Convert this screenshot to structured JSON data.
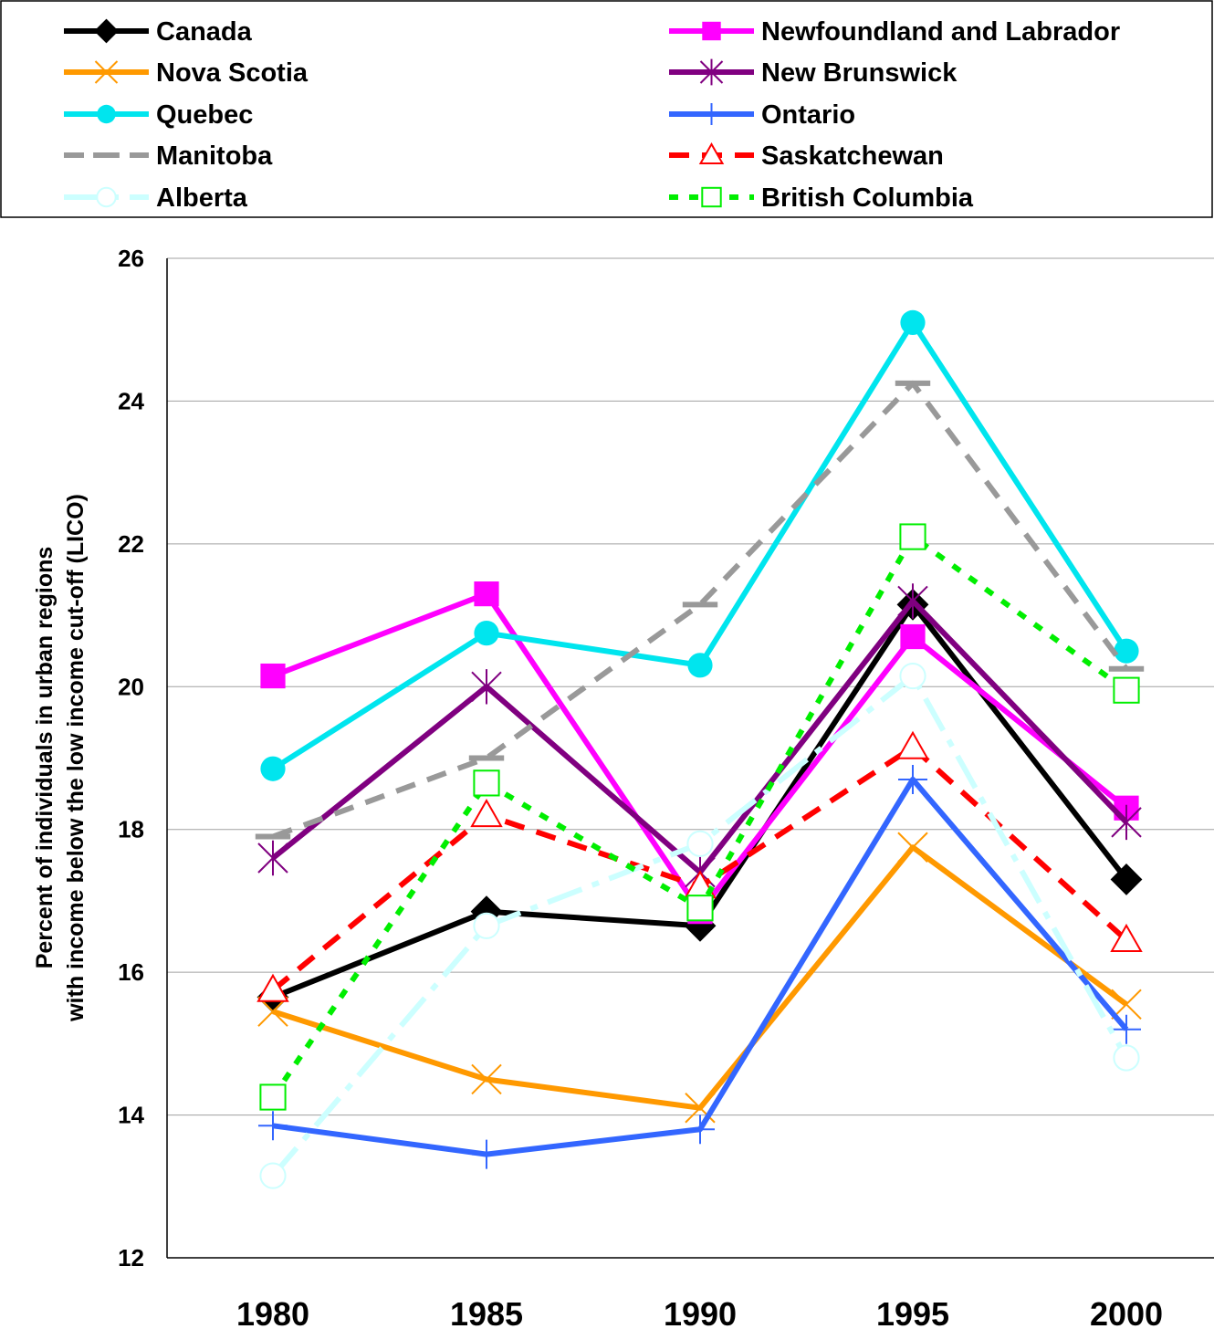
{
  "chart_data": {
    "type": "line",
    "title": "",
    "xlabel": "",
    "ylabel_lines": [
      "Percent of individuals in urban regions",
      "with income below the low income cut-off (LICO)"
    ],
    "ylim": [
      12,
      26
    ],
    "yticks": [
      12,
      14,
      16,
      18,
      20,
      22,
      24,
      26
    ],
    "x": [
      "1980",
      "1985",
      "1990",
      "1995",
      "2000"
    ],
    "grid": "horizontal",
    "legend_position": "top",
    "series": [
      {
        "name": "Canada",
        "color": "#000000",
        "marker": "diamond",
        "dash": "solid",
        "values": [
          15.65,
          16.85,
          16.65,
          21.15,
          17.3
        ]
      },
      {
        "name": "Newfoundland and Labrador",
        "color": "#ff00ff",
        "marker": "square",
        "dash": "solid",
        "values": [
          20.15,
          21.3,
          16.85,
          20.7,
          18.3
        ]
      },
      {
        "name": "Nova Scotia",
        "color": "#ff9900",
        "marker": "x",
        "dash": "solid",
        "values": [
          15.45,
          14.5,
          14.1,
          17.75,
          15.55
        ]
      },
      {
        "name": "New Brunswick",
        "color": "#800080",
        "marker": "asterisk",
        "dash": "solid",
        "values": [
          17.6,
          20.0,
          17.4,
          21.2,
          18.1
        ]
      },
      {
        "name": "Quebec",
        "color": "#00e5ee",
        "marker": "circle",
        "dash": "solid",
        "values": [
          18.85,
          20.75,
          20.3,
          25.1,
          20.5
        ]
      },
      {
        "name": "Ontario",
        "color": "#3366ff",
        "marker": "plus",
        "dash": "solid",
        "values": [
          13.85,
          13.45,
          13.8,
          18.7,
          15.2
        ]
      },
      {
        "name": "Manitoba",
        "color": "#999999",
        "marker": "dash",
        "dash": "dashed",
        "values": [
          17.9,
          19.0,
          21.15,
          24.25,
          20.25
        ]
      },
      {
        "name": "Saskatchewan",
        "color": "#ff0000",
        "marker": "triangle",
        "dash": "dashed",
        "values": [
          15.75,
          18.2,
          17.2,
          19.15,
          16.45
        ]
      },
      {
        "name": "Alberta",
        "color": "#ccffff",
        "marker": "circle-open",
        "dash": "dashdot",
        "values": [
          13.15,
          16.65,
          17.8,
          20.15,
          14.8
        ]
      },
      {
        "name": "British Columbia",
        "color": "#00ee00",
        "marker": "square-open",
        "dash": "dotted",
        "values": [
          14.25,
          18.65,
          16.9,
          22.1,
          19.95
        ]
      }
    ]
  }
}
